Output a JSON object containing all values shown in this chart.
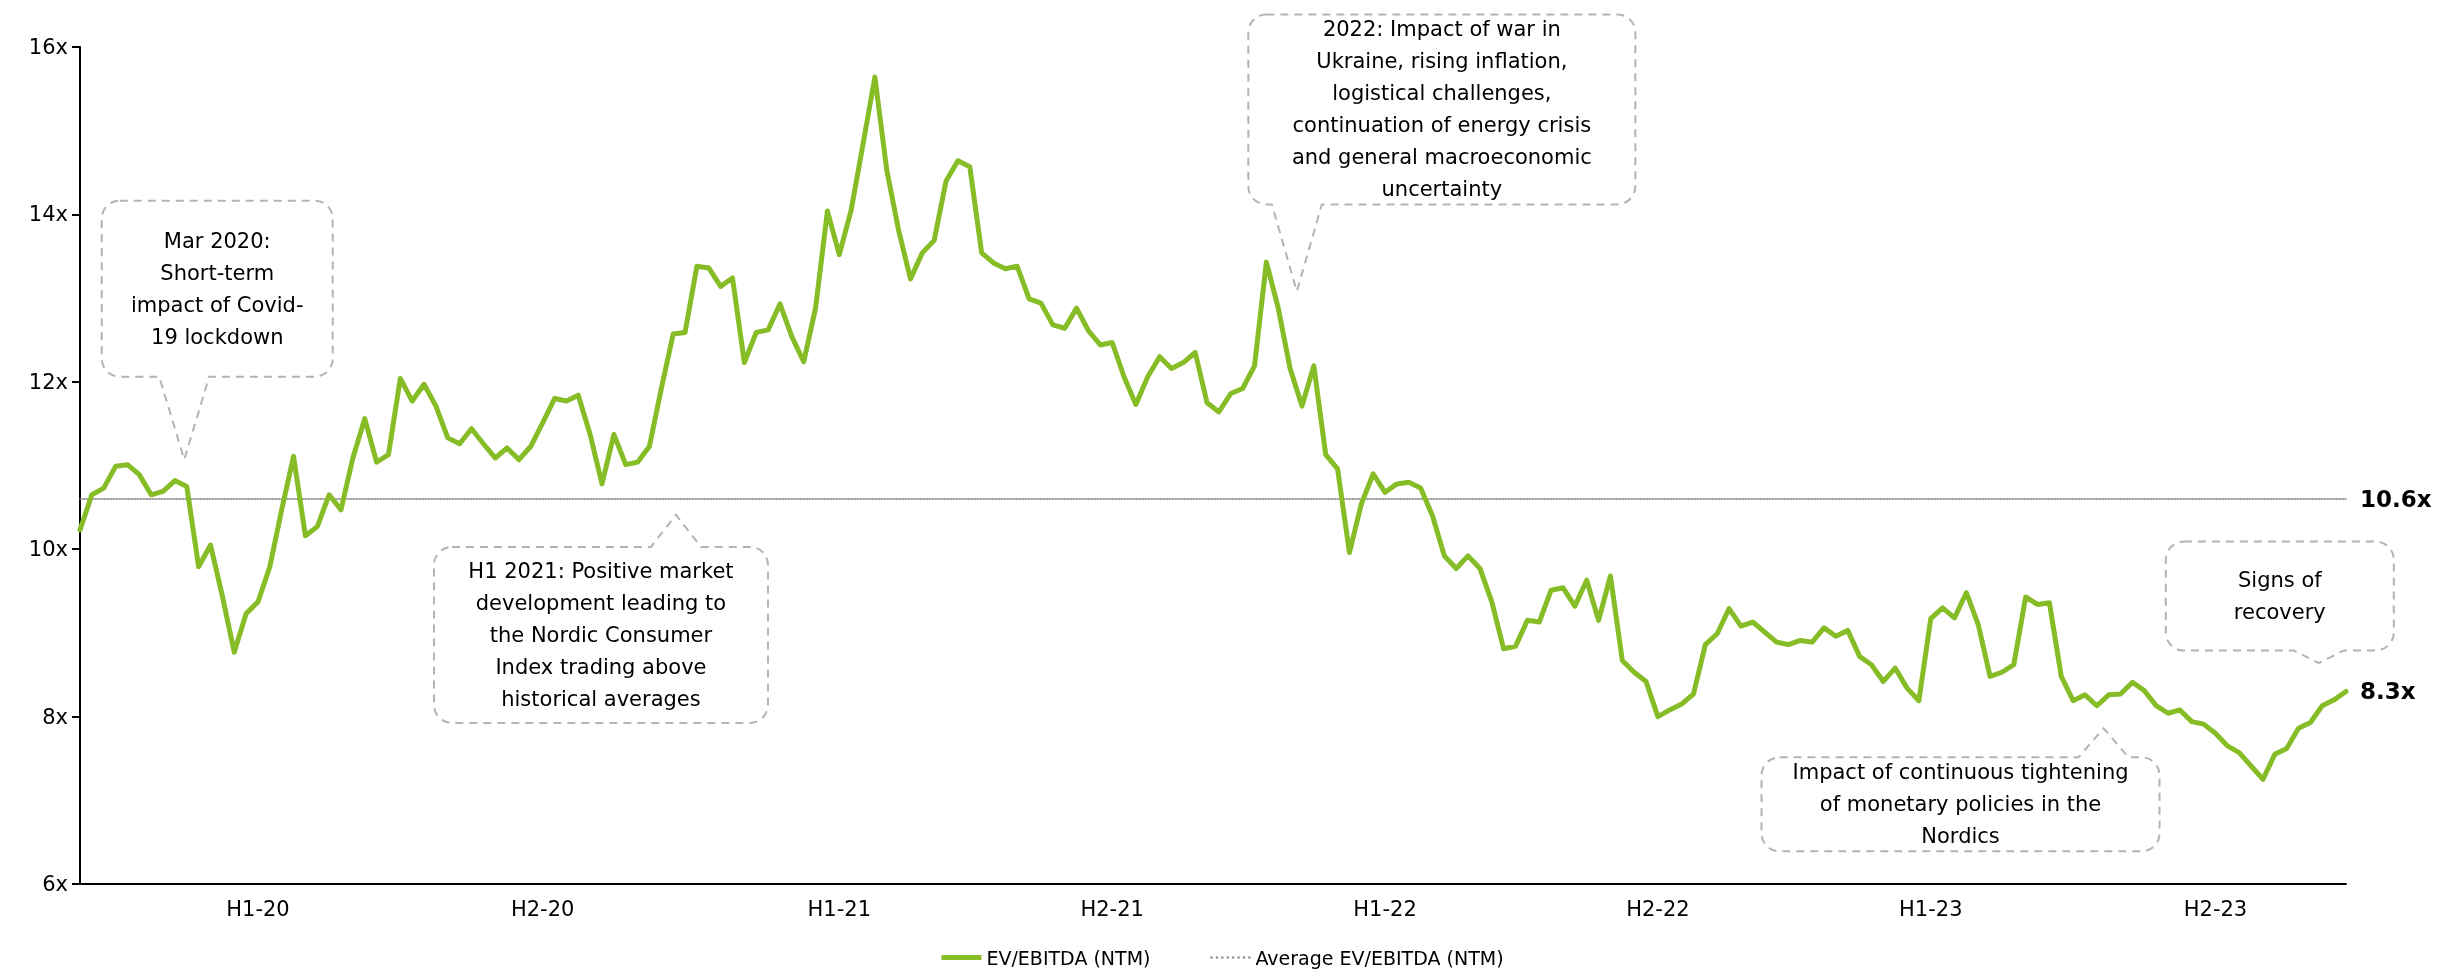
{
  "chart_data": {
    "type": "line",
    "legend": "bottom",
    "grid": false,
    "marker": "none",
    "categories": [
      null,
      null,
      null,
      null,
      null,
      null,
      null,
      null,
      null,
      null,
      null,
      null,
      null,
      null,
      null,
      "H1-20",
      null,
      null,
      null,
      null,
      null,
      null,
      null,
      null,
      null,
      null,
      null,
      null,
      null,
      null,
      null,
      null,
      null,
      null,
      null,
      null,
      null,
      null,
      null,
      "H2-20",
      null,
      null,
      null,
      null,
      null,
      null,
      null,
      null,
      null,
      null,
      null,
      null,
      null,
      null,
      null,
      null,
      null,
      null,
      null,
      null,
      null,
      null,
      null,
      null,
      "H1-21",
      null,
      null,
      null,
      null,
      null,
      null,
      null,
      null,
      null,
      null,
      null,
      null,
      null,
      null,
      null,
      null,
      null,
      null,
      null,
      null,
      null,
      null,
      "H2-21",
      null,
      null,
      null,
      null,
      null,
      null,
      null,
      null,
      null,
      null,
      null,
      null,
      null,
      null,
      null,
      null,
      null,
      null,
      null,
      null,
      null,
      null,
      "H1-22",
      null,
      null,
      null,
      null,
      null,
      null,
      null,
      null,
      null,
      null,
      null,
      null,
      null,
      null,
      null,
      null,
      null,
      null,
      null,
      null,
      null,
      null,
      "H2-22",
      null,
      null,
      null,
      null,
      null,
      null,
      null,
      null,
      null,
      null,
      null,
      null,
      null,
      null,
      null,
      null,
      null,
      null,
      null,
      null,
      null,
      null,
      "H1-23",
      null,
      null,
      null,
      null,
      null,
      null,
      null,
      null,
      null,
      null,
      null,
      null,
      null,
      null,
      null,
      null,
      null,
      null,
      null,
      null,
      null,
      null,
      null,
      "H2-23",
      null,
      null,
      null,
      null,
      null,
      null,
      null,
      null,
      null,
      null,
      null
    ],
    "ylim": [
      6,
      16
    ],
    "yticks": [
      {
        "value": 6,
        "label": "6x"
      },
      {
        "value": 8,
        "label": "8x"
      },
      {
        "value": 10,
        "label": "10x"
      },
      {
        "value": 12,
        "label": "12x"
      },
      {
        "value": 14,
        "label": "14x"
      },
      {
        "value": 16,
        "label": "16x"
      }
    ],
    "series": [
      {
        "name": "EV/EBITDA (NTM)",
        "color": "#86bc25",
        "line_style": "solid",
        "values": [
          10.23,
          10.65,
          10.73,
          10.99,
          11.01,
          10.89,
          10.65,
          10.69,
          10.82,
          10.75,
          9.79,
          10.05,
          9.44,
          8.77,
          9.23,
          9.37,
          9.79,
          10.47,
          11.11,
          10.16,
          10.27,
          10.65,
          10.47,
          11.09,
          11.56,
          11.04,
          11.13,
          12.04,
          11.77,
          11.97,
          11.71,
          11.33,
          11.26,
          11.44,
          11.26,
          11.09,
          11.21,
          11.07,
          11.23,
          11.51,
          11.8,
          11.77,
          11.84,
          11.37,
          10.78,
          11.37,
          11.01,
          11.04,
          11.23,
          11.92,
          12.57,
          12.59,
          13.38,
          13.36,
          13.14,
          13.24,
          12.23,
          12.59,
          12.62,
          12.93,
          12.54,
          12.24,
          12.88,
          14.04,
          13.52,
          14.05,
          14.84,
          15.64,
          14.53,
          13.81,
          13.23,
          13.54,
          13.69,
          14.4,
          14.64,
          14.57,
          13.54,
          13.42,
          13.35,
          13.38,
          12.99,
          12.94,
          12.68,
          12.64,
          12.88,
          12.61,
          12.44,
          12.47,
          12.06,
          11.73,
          12.06,
          12.3,
          12.16,
          12.23,
          12.35,
          11.75,
          11.64,
          11.86,
          11.92,
          12.19,
          13.43,
          12.88,
          12.16,
          11.71,
          12.19,
          11.13,
          10.96,
          9.96,
          10.54,
          10.9,
          10.68,
          10.78,
          10.8,
          10.73,
          10.4,
          9.92,
          9.77,
          9.92,
          9.77,
          9.37,
          8.81,
          8.84,
          9.15,
          9.13,
          9.51,
          9.54,
          9.32,
          9.63,
          9.15,
          9.68,
          8.67,
          8.53,
          8.42,
          8.0,
          8.08,
          8.15,
          8.27,
          8.86,
          8.99,
          9.29,
          9.08,
          9.13,
          9.01,
          8.89,
          8.86,
          8.91,
          8.89,
          9.06,
          8.96,
          9.03,
          8.72,
          8.62,
          8.42,
          8.58,
          8.34,
          8.19,
          9.17,
          9.3,
          9.18,
          9.48,
          9.1,
          8.48,
          8.53,
          8.62,
          9.43,
          9.34,
          9.36,
          8.48,
          8.19,
          8.26,
          8.13,
          8.26,
          8.27,
          8.41,
          8.31,
          8.13,
          8.04,
          8.08,
          7.94,
          7.91,
          7.8,
          7.65,
          7.57,
          7.41,
          7.25,
          7.55,
          7.62,
          7.86,
          7.93,
          8.13,
          8.2,
          8.3
        ],
        "value_labels": [
          null,
          null,
          null,
          null,
          null,
          null,
          null,
          null,
          null,
          null,
          null,
          null,
          null,
          null,
          null,
          null,
          null,
          null,
          null,
          null,
          null,
          null,
          null,
          null,
          null,
          null,
          null,
          null,
          null,
          null,
          null,
          null,
          null,
          null,
          null,
          null,
          null,
          null,
          null,
          null,
          null,
          null,
          null,
          null,
          null,
          null,
          null,
          null,
          null,
          null,
          null,
          null,
          null,
          null,
          null,
          null,
          null,
          null,
          null,
          null,
          null,
          null,
          null,
          null,
          null,
          null,
          null,
          null,
          null,
          null,
          null,
          null,
          null,
          null,
          null,
          null,
          null,
          null,
          null,
          null,
          null,
          null,
          null,
          null,
          null,
          null,
          null,
          null,
          null,
          null,
          null,
          null,
          null,
          null,
          null,
          null,
          null,
          null,
          null,
          null,
          null,
          null,
          null,
          null,
          null,
          null,
          null,
          null,
          null,
          null,
          null,
          null,
          null,
          null,
          null,
          null,
          null,
          null,
          null,
          null,
          null,
          null,
          null,
          null,
          null,
          null,
          null,
          null,
          null,
          null,
          null,
          null,
          null,
          null,
          null,
          null,
          null,
          null,
          null,
          null,
          null,
          null,
          null,
          null,
          null,
          null,
          null,
          null,
          null,
          null,
          null,
          null,
          null,
          null,
          null,
          null,
          null,
          null,
          null,
          null,
          null,
          null,
          null,
          null,
          null,
          null,
          null,
          null,
          null,
          null,
          null,
          null,
          null,
          null,
          null,
          null,
          null,
          null,
          null,
          null,
          null,
          null,
          null,
          null,
          null,
          null,
          null,
          null,
          null,
          null,
          null,
          "8.3x"
        ]
      },
      {
        "name": "Average EV/EBITDA (NTM)",
        "color": "#808080",
        "line_style": "dotted",
        "values": [
          10.6,
          10.6,
          10.6,
          10.6,
          10.6,
          10.6,
          10.6,
          10.6,
          10.6,
          10.6,
          10.6,
          10.6,
          10.6,
          10.6,
          10.6,
          10.6,
          10.6,
          10.6,
          10.6,
          10.6,
          10.6,
          10.6,
          10.6,
          10.6,
          10.6,
          10.6,
          10.6,
          10.6,
          10.6,
          10.6,
          10.6,
          10.6,
          10.6,
          10.6,
          10.6,
          10.6,
          10.6,
          10.6,
          10.6,
          10.6,
          10.6,
          10.6,
          10.6,
          10.6,
          10.6,
          10.6,
          10.6,
          10.6,
          10.6,
          10.6,
          10.6,
          10.6,
          10.6,
          10.6,
          10.6,
          10.6,
          10.6,
          10.6,
          10.6,
          10.6,
          10.6,
          10.6,
          10.6,
          10.6,
          10.6,
          10.6,
          10.6,
          10.6,
          10.6,
          10.6,
          10.6,
          10.6,
          10.6,
          10.6,
          10.6,
          10.6,
          10.6,
          10.6,
          10.6,
          10.6,
          10.6,
          10.6,
          10.6,
          10.6,
          10.6,
          10.6,
          10.6,
          10.6,
          10.6,
          10.6,
          10.6,
          10.6,
          10.6,
          10.6,
          10.6,
          10.6,
          10.6,
          10.6,
          10.6,
          10.6,
          10.6,
          10.6,
          10.6,
          10.6,
          10.6,
          10.6,
          10.6,
          10.6,
          10.6,
          10.6,
          10.6,
          10.6,
          10.6,
          10.6,
          10.6,
          10.6,
          10.6,
          10.6,
          10.6,
          10.6,
          10.6,
          10.6,
          10.6,
          10.6,
          10.6,
          10.6,
          10.6,
          10.6,
          10.6,
          10.6,
          10.6,
          10.6,
          10.6,
          10.6,
          10.6,
          10.6,
          10.6,
          10.6,
          10.6,
          10.6,
          10.6,
          10.6,
          10.6,
          10.6,
          10.6,
          10.6,
          10.6,
          10.6,
          10.6,
          10.6,
          10.6,
          10.6,
          10.6,
          10.6,
          10.6,
          10.6,
          10.6,
          10.6,
          10.6,
          10.6,
          10.6,
          10.6,
          10.6,
          10.6,
          10.6,
          10.6,
          10.6,
          10.6,
          10.6,
          10.6,
          10.6,
          10.6,
          10.6,
          10.6,
          10.6,
          10.6,
          10.6,
          10.6,
          10.6,
          10.6,
          10.6,
          10.6,
          10.6,
          10.6,
          10.6,
          10.6,
          10.6,
          10.6,
          10.6,
          10.6,
          10.6,
          10.6
        ],
        "value_labels": [
          null,
          null,
          null,
          null,
          null,
          null,
          null,
          null,
          null,
          null,
          null,
          null,
          null,
          null,
          null,
          null,
          null,
          null,
          null,
          null,
          null,
          null,
          null,
          null,
          null,
          null,
          null,
          null,
          null,
          null,
          null,
          null,
          null,
          null,
          null,
          null,
          null,
          null,
          null,
          null,
          null,
          null,
          null,
          null,
          null,
          null,
          null,
          null,
          null,
          null,
          null,
          null,
          null,
          null,
          null,
          null,
          null,
          null,
          null,
          null,
          null,
          null,
          null,
          null,
          null,
          null,
          null,
          null,
          null,
          null,
          null,
          null,
          null,
          null,
          null,
          null,
          null,
          null,
          null,
          null,
          null,
          null,
          null,
          null,
          null,
          null,
          null,
          null,
          null,
          null,
          null,
          null,
          null,
          null,
          null,
          null,
          null,
          null,
          null,
          null,
          null,
          null,
          null,
          null,
          null,
          null,
          null,
          null,
          null,
          null,
          null,
          null,
          null,
          null,
          null,
          null,
          null,
          null,
          null,
          null,
          null,
          null,
          null,
          null,
          null,
          null,
          null,
          null,
          null,
          null,
          null,
          null,
          null,
          null,
          null,
          null,
          null,
          null,
          null,
          null,
          null,
          null,
          null,
          null,
          null,
          null,
          null,
          null,
          null,
          null,
          null,
          null,
          null,
          null,
          null,
          null,
          null,
          null,
          null,
          null,
          null,
          null,
          null,
          null,
          null,
          null,
          null,
          null,
          null,
          null,
          null,
          null,
          null,
          null,
          null,
          null,
          null,
          null,
          null,
          null,
          null,
          null,
          null,
          null,
          null,
          null,
          null,
          null,
          null,
          null,
          null,
          "10.6x"
        ]
      }
    ],
    "annotations": [
      "Mar 2020:\nShort-term\nimpact of Covid-\n19 lockdown",
      "H1 2021: Positive market\ndevelopment leading to\nthe Nordic Consumer\nIndex trading above\nhistorical averages",
      "2022: Impact of war in\nUkraine, rising inflation,\nlogistical challenges,\ncontinuation of energy crisis\nand general macroeconomic\nuncertainty",
      "Impact of continuous tightening\nof monetary policies in the\nNordics",
      "Signs of\nrecovery"
    ]
  }
}
